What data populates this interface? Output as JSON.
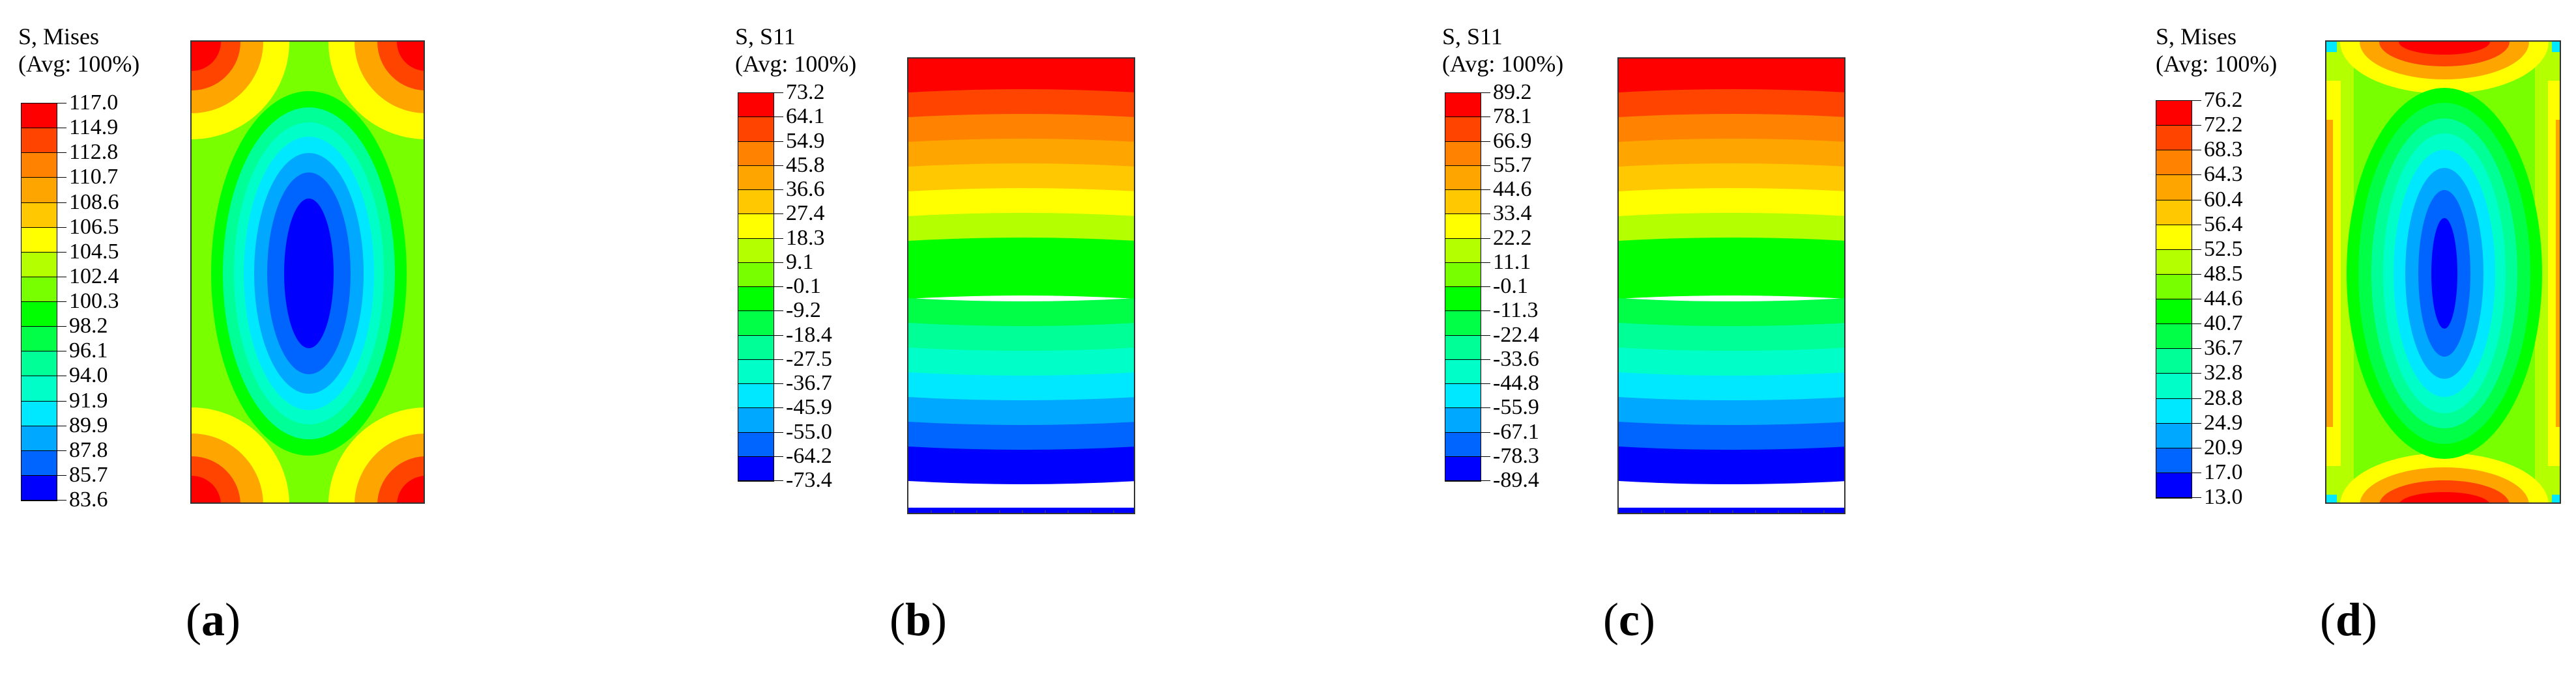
{
  "panels": [
    {
      "id": "a",
      "title_line1": "S, Mises",
      "title_line2": "(Avg: 100%)",
      "legend_values": [
        "117.0",
        "114.9",
        "112.8",
        "110.7",
        "108.6",
        "106.5",
        "104.5",
        "102.4",
        "100.3",
        "98.2",
        "96.1",
        "94.0",
        "91.9",
        "89.9",
        "87.8",
        "85.7",
        "83.6"
      ],
      "pattern": "mises-center-low",
      "caption_letter": "a"
    },
    {
      "id": "b",
      "title_line1": "S, S11",
      "title_line2": "(Avg: 100%)",
      "legend_values": [
        "73.2",
        "64.1",
        "54.9",
        "45.8",
        "36.6",
        "27.4",
        "18.3",
        "9.1",
        "-0.1",
        "-9.2",
        "-18.4",
        "-27.5",
        "-36.7",
        "-45.9",
        "-55.0",
        "-64.2",
        "-73.4"
      ],
      "pattern": "bending-gradient",
      "caption_letter": "b"
    },
    {
      "id": "c",
      "title_line1": "S, S11",
      "title_line2": "(Avg: 100%)",
      "legend_values": [
        "89.2",
        "78.1",
        "66.9",
        "55.7",
        "44.6",
        "33.4",
        "22.2",
        "11.1",
        "-0.1",
        "-11.3",
        "-22.4",
        "-33.6",
        "-44.8",
        "-55.9",
        "-67.1",
        "-78.3",
        "-89.4"
      ],
      "pattern": "bending-gradient",
      "caption_letter": "c"
    },
    {
      "id": "d",
      "title_line1": "S, Mises",
      "title_line2": "(Avg: 100%)",
      "legend_values": [
        "76.2",
        "72.2",
        "68.3",
        "64.3",
        "60.4",
        "56.4",
        "52.5",
        "48.5",
        "44.6",
        "40.7",
        "36.7",
        "32.8",
        "28.8",
        "24.9",
        "20.9",
        "17.0",
        "13.0"
      ],
      "pattern": "mises-center-low-edges-high",
      "caption_letter": "d"
    }
  ],
  "colors": {
    "scale": [
      "#ff0000",
      "#ff4400",
      "#ff8200",
      "#ffa500",
      "#ffc800",
      "#ffff00",
      "#b4ff00",
      "#78ff00",
      "#00ff00",
      "#00ff46",
      "#00ff96",
      "#00ffc8",
      "#00e8ff",
      "#00a8ff",
      "#0064ff",
      "#0000ff"
    ]
  }
}
